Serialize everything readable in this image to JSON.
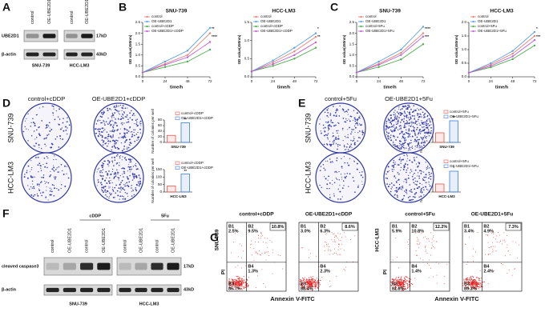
{
  "panel_letters": [
    "A",
    "B",
    "C",
    "D",
    "E",
    "F",
    "G"
  ],
  "blot_a": {
    "cells": [
      "SNU-739",
      "HCC-LM3"
    ],
    "lanes": [
      "control",
      "OE-UBE2D1"
    ],
    "proteins": [
      "UBE2D1",
      "β-actin"
    ],
    "sizes": [
      "17kD",
      "43kD"
    ]
  },
  "chart_data": [
    {
      "type": "line",
      "title": "SNU-739",
      "x_label": "time/h",
      "y_label": "OD value(450nm)",
      "x": [
        0,
        24,
        48,
        72
      ],
      "xlim": [
        0,
        72
      ],
      "xticks": [
        0,
        24,
        48,
        72
      ],
      "ylim": [
        0,
        2.5
      ],
      "yticks": [
        {
          "value": 0,
          "label": "0.0"
        },
        {
          "value": 0.5,
          "label": "0.5"
        },
        {
          "value": 1,
          "label": "1.0"
        },
        {
          "value": 1.5,
          "label": "1.5"
        },
        {
          "value": 2,
          "label": "2.0"
        },
        {
          "value": 2.5,
          "label": "2.5"
        }
      ],
      "legend": "top-left",
      "annotations": [
        "**",
        "****"
      ],
      "series": [
        {
          "name": "control",
          "color": "#e8837a",
          "values": [
            0.2,
            0.6,
            1.0,
            2.0
          ]
        },
        {
          "name": "OE-UBE2D1",
          "color": "#5ba3e6",
          "values": [
            0.2,
            0.7,
            1.2,
            2.25
          ]
        },
        {
          "name": "control+cDDP",
          "color": "#4caf50",
          "values": [
            0.2,
            0.45,
            0.7,
            1.25
          ]
        },
        {
          "name": "OE-UBE2D1+cDDP",
          "color": "#c060d0",
          "values": [
            0.2,
            0.55,
            0.9,
            1.6
          ]
        }
      ]
    },
    {
      "type": "line",
      "title": "HCC-LM3",
      "x_label": "time/h",
      "y_label": "OD value(450nm)",
      "x": [
        0,
        24,
        48,
        72
      ],
      "xlim": [
        0,
        72
      ],
      "xticks": [
        0,
        24,
        48,
        72
      ],
      "ylim": [
        0,
        1.5
      ],
      "yticks": [
        {
          "value": 0,
          "label": "0.0"
        },
        {
          "value": 0.5,
          "label": "0.5"
        },
        {
          "value": 1,
          "label": "1.0"
        },
        {
          "value": 1.5,
          "label": "1.5"
        }
      ],
      "legend": "top-left",
      "annotations": [
        "*",
        "**"
      ],
      "series": [
        {
          "name": "control",
          "color": "#e8837a",
          "values": [
            0.15,
            0.4,
            0.7,
            1.1
          ]
        },
        {
          "name": "OE-UBE2D1",
          "color": "#5ba3e6",
          "values": [
            0.15,
            0.45,
            0.8,
            1.2
          ]
        },
        {
          "name": "control+cDDP",
          "color": "#4caf50",
          "values": [
            0.15,
            0.3,
            0.5,
            0.8
          ]
        },
        {
          "name": "OE-UBE2D1+cDDP",
          "color": "#c060d0",
          "values": [
            0.15,
            0.35,
            0.6,
            0.95
          ]
        }
      ]
    },
    {
      "type": "line",
      "title": "SNU-739",
      "x_label": "time/h",
      "y_label": "OD value(450nm)",
      "x": [
        0,
        24,
        48,
        72
      ],
      "xlim": [
        0,
        72
      ],
      "xticks": [
        0,
        24,
        48,
        72
      ],
      "ylim": [
        0,
        2.5
      ],
      "yticks": [
        {
          "value": 0,
          "label": "0.0"
        },
        {
          "value": 0.5,
          "label": "0.5"
        },
        {
          "value": 1,
          "label": "1.0"
        },
        {
          "value": 1.5,
          "label": "1.5"
        },
        {
          "value": 2,
          "label": "2.0"
        },
        {
          "value": 2.5,
          "label": "2.5"
        }
      ],
      "legend": "top-left",
      "annotations": [
        "****",
        "***"
      ],
      "series": [
        {
          "name": "control",
          "color": "#e8837a",
          "values": [
            0.2,
            0.6,
            1.1,
            2.0
          ]
        },
        {
          "name": "OE-UBE2D1",
          "color": "#5ba3e6",
          "values": [
            0.2,
            0.7,
            1.25,
            2.3
          ]
        },
        {
          "name": "control+5Fu",
          "color": "#4caf50",
          "values": [
            0.2,
            0.45,
            0.8,
            1.5
          ]
        },
        {
          "name": "OE-UBE2D1+5Fu",
          "color": "#c060d0",
          "values": [
            0.2,
            0.55,
            1.0,
            1.85
          ]
        }
      ]
    },
    {
      "type": "line",
      "title": "HCC-LM3",
      "x_label": "time/h",
      "y_label": "OD value(450nm)",
      "x": [
        0,
        24,
        48,
        72
      ],
      "xlim": [
        0,
        72
      ],
      "xticks": [
        0,
        24,
        48,
        72
      ],
      "ylim": [
        0,
        2
      ],
      "yticks": [
        {
          "value": 0,
          "label": "0.0"
        },
        {
          "value": 0.5,
          "label": "0.5"
        },
        {
          "value": 1,
          "label": "1.0"
        },
        {
          "value": 1.5,
          "label": "1.5"
        },
        {
          "value": 2,
          "label": "2.0"
        }
      ],
      "legend": "top-left",
      "annotations": [
        "*",
        "***"
      ],
      "series": [
        {
          "name": "control",
          "color": "#e8837a",
          "values": [
            0.15,
            0.45,
            0.85,
            1.5
          ]
        },
        {
          "name": "OE-UBE2D1",
          "color": "#5ba3e6",
          "values": [
            0.15,
            0.5,
            0.95,
            1.65
          ]
        },
        {
          "name": "control+5Fu",
          "color": "#4caf50",
          "values": [
            0.15,
            0.35,
            0.65,
            1.15
          ]
        },
        {
          "name": "OE-UBE2D1+5Fu",
          "color": "#c060d0",
          "values": [
            0.15,
            0.4,
            0.75,
            1.35
          ]
        }
      ]
    },
    {
      "type": "bar",
      "x_label": "SNU-739",
      "y_label": "Number of colonies per well",
      "categories": [
        "control+cDDP",
        "OE-UBE2D1+cDDP"
      ],
      "values": [
        25,
        70
      ],
      "colors": [
        "#e8534a",
        "#3a7be0"
      ],
      "ylim": [
        0,
        80
      ],
      "yticks": [
        0,
        20,
        40,
        60,
        80
      ],
      "annotations": [
        "**"
      ]
    },
    {
      "type": "bar",
      "x_label": "HCC-LM3",
      "y_label": "Number of colonies per well",
      "categories": [
        "control+cDDP",
        "OE-UBE2D1+cDDP"
      ],
      "values": [
        40,
        120
      ],
      "colors": [
        "#e8534a",
        "#3a7be0"
      ],
      "ylim": [
        0,
        150
      ],
      "yticks": [
        0,
        50,
        100,
        150
      ],
      "annotations": [
        "**"
      ]
    },
    {
      "type": "bar",
      "x_label": "SNU-739",
      "y_label": "Number of colonies per well",
      "categories": [
        "control+5Fu",
        "OE-UBE2D1+5Fu"
      ],
      "values": [
        80,
        180
      ],
      "colors": [
        "#e8534a",
        "#3a7be0"
      ],
      "ylim": [
        0,
        200
      ],
      "yticks": [
        0,
        50,
        100,
        150,
        200
      ],
      "annotations": [
        "**"
      ]
    },
    {
      "type": "bar",
      "x_label": "HCC-LM3",
      "y_label": "Number of colonies per well",
      "categories": [
        "control+5Fu",
        "OE-UBE2D1+5Fu"
      ],
      "values": [
        50,
        130
      ],
      "colors": [
        "#e8534a",
        "#3a7be0"
      ],
      "ylim": [
        0,
        150
      ],
      "yticks": [
        0,
        50,
        100,
        150
      ],
      "annotations": [
        "*"
      ]
    }
  ],
  "colony_d": {
    "columns": [
      "control+cDDP",
      "OE-UBE2D1+cDDP"
    ],
    "rows": [
      "SNU-739",
      "HCC-LM3"
    ]
  },
  "colony_e": {
    "columns": [
      "control+5Fu",
      "OE-UBE2D1+5Fu"
    ],
    "rows": [
      "SNU-739",
      "HCC-LM3"
    ]
  },
  "blot_f": {
    "treatments": [
      "cDDP",
      "5Fu"
    ],
    "lanes": [
      "control",
      "OE-UBE2D1",
      "control",
      "OE-UBE2D1"
    ],
    "proteins": [
      "cleaved caspase3",
      "β-actin"
    ],
    "sizes": [
      "17kD",
      "43kD"
    ],
    "cells": [
      "SNU-739",
      "HCC-LM3"
    ]
  },
  "flow": {
    "cells": [
      "SNU-739",
      "HCC-LM3"
    ],
    "x_label": "Annexin V-FITC",
    "y_label": "PI",
    "panels": [
      {
        "title": "control+cDDP",
        "total": "10.8%",
        "quadrants": [
          {
            "label": "B1",
            "value": "2.5%"
          },
          {
            "label": "B2",
            "value": "9.5%"
          },
          {
            "label": "B3",
            "value": "86.7%"
          },
          {
            "label": "B4",
            "value": "1.3%"
          }
        ]
      },
      {
        "title": "OE-UBE2D1+cDDP",
        "total": "8.6%",
        "quadrants": [
          {
            "label": "B1",
            "value": "3.0%"
          },
          {
            "label": "B2",
            "value": "6.3%"
          },
          {
            "label": "B3",
            "value": "88.4%"
          },
          {
            "label": "B4",
            "value": "2.3%"
          }
        ]
      },
      {
        "title": "control+5Fu",
        "total": "12.2%",
        "quadrants": [
          {
            "label": "B1",
            "value": "5.9%"
          },
          {
            "label": "B2",
            "value": "10.8%"
          },
          {
            "label": "B3",
            "value": "81.8%"
          },
          {
            "label": "B4",
            "value": "1.4%"
          }
        ]
      },
      {
        "title": "OE-UBE2D1+5Fu",
        "total": "7.3%",
        "quadrants": [
          {
            "label": "B1",
            "value": "3.4%"
          },
          {
            "label": "B2",
            "value": "4.9%"
          },
          {
            "label": "B3",
            "value": "89.3%"
          },
          {
            "label": "B4",
            "value": "2.4%"
          }
        ]
      }
    ]
  }
}
